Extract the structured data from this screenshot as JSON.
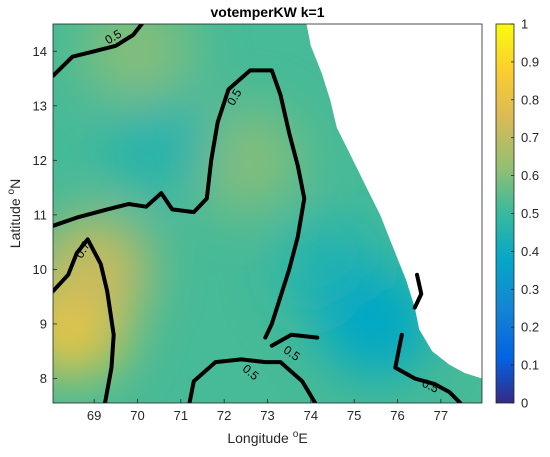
{
  "chart_data": {
    "type": "heatmap",
    "title": "votemperKW k=1",
    "xlabel": {
      "text": "Longitude ",
      "sup": "o",
      "tail": "E"
    },
    "ylabel": {
      "text": "Latitude ",
      "sup": "o",
      "tail": "N"
    },
    "xlim": [
      68.05,
      77.95
    ],
    "ylim": [
      7.55,
      14.5
    ],
    "xticks": [
      69,
      70,
      71,
      72,
      73,
      74,
      75,
      76,
      77
    ],
    "yticks": [
      8,
      9,
      10,
      11,
      12,
      13,
      14
    ],
    "colorbar": {
      "colormap": "parula",
      "range": [
        0,
        1
      ],
      "ticks": [
        0,
        0.1,
        0.2,
        0.3,
        0.4,
        0.5,
        0.6,
        0.7,
        0.8,
        0.9,
        1
      ],
      "tick_labels": [
        "0",
        "0.1",
        "0.2",
        "0.3",
        "0.4",
        "0.5",
        "0.6",
        "0.7",
        "0.8",
        "0.9",
        "1"
      ]
    },
    "land_color": "#ffffff",
    "coast_boundary": [
      [
        73.9,
        14.5
      ],
      [
        74.0,
        14.1
      ],
      [
        74.25,
        13.6
      ],
      [
        74.45,
        13.1
      ],
      [
        74.6,
        12.6
      ],
      [
        74.85,
        12.2
      ],
      [
        75.1,
        11.8
      ],
      [
        75.35,
        11.4
      ],
      [
        75.6,
        11.0
      ],
      [
        75.8,
        10.6
      ],
      [
        76.0,
        10.2
      ],
      [
        76.2,
        9.8
      ],
      [
        76.4,
        9.3
      ],
      [
        76.5,
        8.9
      ],
      [
        76.8,
        8.5
      ],
      [
        77.2,
        8.25
      ],
      [
        77.55,
        8.1
      ],
      [
        77.95,
        8.0
      ]
    ],
    "value_field_samples": [
      {
        "lon": 68.5,
        "lat": 9.0,
        "value": 0.83
      },
      {
        "lon": 69.0,
        "lat": 10.0,
        "value": 0.72
      },
      {
        "lon": 72.5,
        "lat": 12.0,
        "value": 0.6
      },
      {
        "lon": 70.5,
        "lat": 12.3,
        "value": 0.46
      },
      {
        "lon": 70.0,
        "lat": 14.0,
        "value": 0.6
      },
      {
        "lon": 74.5,
        "lat": 10.0,
        "value": 0.45
      },
      {
        "lon": 75.5,
        "lat": 9.0,
        "value": 0.38
      }
    ],
    "contours": [
      {
        "level": 0.5,
        "label": "0.5",
        "points": [
          [
            68.05,
            13.55
          ],
          [
            68.5,
            13.9
          ],
          [
            69.0,
            14.0
          ],
          [
            69.5,
            14.1
          ],
          [
            69.9,
            14.3
          ],
          [
            70.1,
            14.5
          ]
        ],
        "label_at": [
          69.45,
          14.25
        ],
        "label_angle": -30
      },
      {
        "level": 0.5,
        "label": "0.5",
        "points": [
          [
            68.05,
            10.8
          ],
          [
            68.6,
            10.95
          ],
          [
            69.3,
            11.1
          ],
          [
            69.8,
            11.2
          ],
          [
            70.2,
            11.15
          ],
          [
            70.55,
            11.4
          ],
          [
            70.8,
            11.1
          ],
          [
            71.3,
            11.05
          ],
          [
            71.6,
            11.3
          ],
          [
            71.7,
            12.0
          ],
          [
            71.85,
            12.7
          ],
          [
            72.1,
            13.3
          ],
          [
            72.6,
            13.65
          ],
          [
            73.1,
            13.65
          ],
          [
            73.3,
            13.2
          ],
          [
            73.5,
            12.5
          ],
          [
            73.7,
            11.9
          ],
          [
            73.85,
            11.3
          ],
          [
            73.7,
            10.6
          ],
          [
            73.5,
            10.0
          ],
          [
            73.3,
            9.5
          ],
          [
            73.1,
            9.0
          ],
          [
            72.95,
            8.75
          ]
        ],
        "label_at": [
          72.25,
          13.15
        ],
        "label_angle": -60
      },
      {
        "level": 0.5,
        "label": "0.5",
        "points": [
          [
            71.2,
            7.55
          ],
          [
            71.3,
            7.95
          ],
          [
            71.8,
            8.3
          ],
          [
            72.4,
            8.35
          ],
          [
            72.95,
            8.3
          ],
          [
            73.3,
            8.3
          ],
          [
            73.8,
            7.95
          ],
          [
            74.1,
            7.55
          ]
        ],
        "label_at": [
          73.55,
          8.45
        ],
        "label_angle": 35
      },
      {
        "level": 0.5,
        "label": "0.5",
        "points": [
          [
            73.1,
            8.6
          ],
          [
            73.55,
            8.8
          ],
          [
            74.15,
            8.75
          ]
        ],
        "label_at": [
          72.6,
          8.1
        ],
        "label_angle": 40
      },
      {
        "level": 0.7,
        "label": "0.7",
        "points": [
          [
            68.05,
            9.6
          ],
          [
            68.4,
            9.9
          ],
          [
            68.6,
            10.3
          ],
          [
            68.85,
            10.55
          ],
          [
            69.15,
            10.1
          ],
          [
            69.3,
            9.6
          ],
          [
            69.45,
            8.8
          ],
          [
            69.4,
            8.2
          ],
          [
            69.25,
            7.55
          ]
        ],
        "label_at": [
          68.75,
          10.35
        ],
        "label_angle": -60
      },
      {
        "level": 0.5,
        "label": "0.5",
        "points": [
          [
            76.1,
            8.8
          ],
          [
            75.95,
            8.2
          ],
          [
            76.4,
            8.0
          ],
          [
            76.85,
            7.9
          ],
          [
            77.2,
            7.75
          ],
          [
            77.45,
            7.55
          ]
        ],
        "label_at": [
          76.75,
          7.85
        ],
        "label_angle": 25
      },
      {
        "level": 0.5,
        "label": "",
        "points": [
          [
            76.4,
            9.3
          ],
          [
            76.55,
            9.55
          ],
          [
            76.45,
            9.9
          ]
        ],
        "label_at": null,
        "label_angle": 0
      }
    ]
  }
}
